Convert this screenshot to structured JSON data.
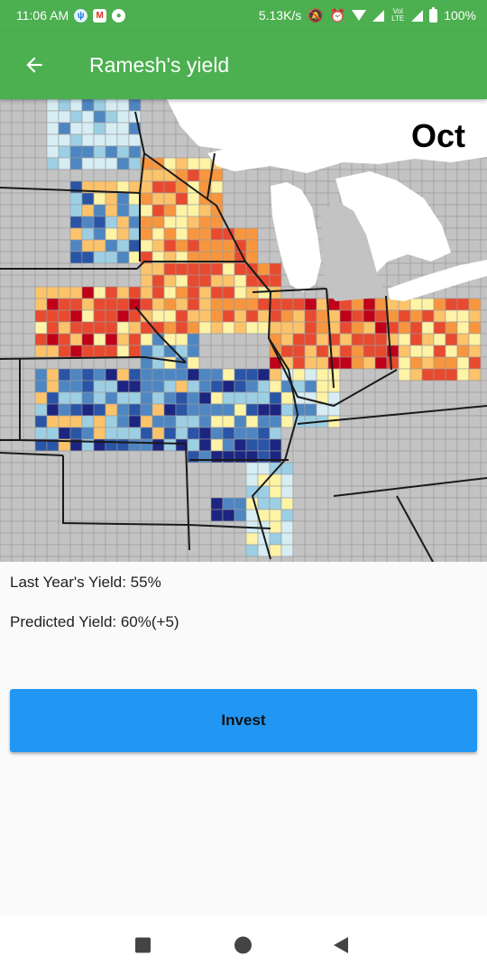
{
  "status_bar": {
    "time": "11:06 AM",
    "speed": "5.13K/s",
    "lte_label": "Vol LTE",
    "battery": "100%"
  },
  "app_bar": {
    "title": "Ramesh's yield",
    "back_icon": "arrow-back-icon"
  },
  "map": {
    "month": "Oct",
    "colors": {
      "dark_red": "#c00018",
      "red": "#e84a2f",
      "orange": "#f7963e",
      "light_orange": "#fcc36a",
      "yellow": "#fff3a6",
      "pale_blue": "#d6edf4",
      "light_blue": "#9ccfe3",
      "blue": "#4e86c2",
      "mid_blue": "#2a54a6",
      "navy": "#1c2580",
      "no_data": "#c3c3c3",
      "water": "#ffffff"
    }
  },
  "info": {
    "last_year": "Last Year's Yield: 55%",
    "predicted": "Predicted Yield: 60%(+5)"
  },
  "invest_label": "Invest"
}
